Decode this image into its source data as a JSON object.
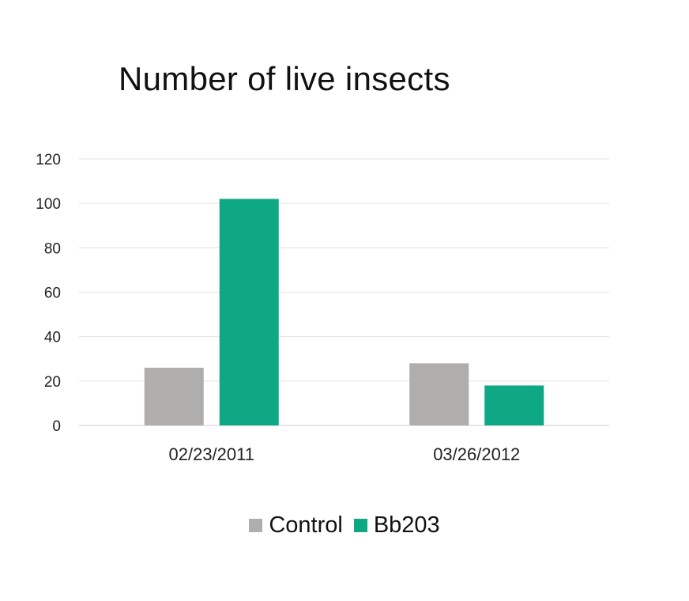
{
  "chart_data": {
    "type": "bar",
    "title": "Number of live insects",
    "categories": [
      "02/23/2011",
      "03/26/2012"
    ],
    "series": [
      {
        "name": "Control",
        "values": [
          26,
          28
        ],
        "color": "#b0aeac"
      },
      {
        "name": "Bb203",
        "values": [
          102,
          18
        ],
        "color": "#0ea885"
      }
    ],
    "y_ticks": [
      "0",
      "20",
      "40",
      "60",
      "80",
      "100",
      "120"
    ],
    "ylim": [
      0,
      120
    ],
    "grid": true,
    "legend_position": "bottom"
  }
}
